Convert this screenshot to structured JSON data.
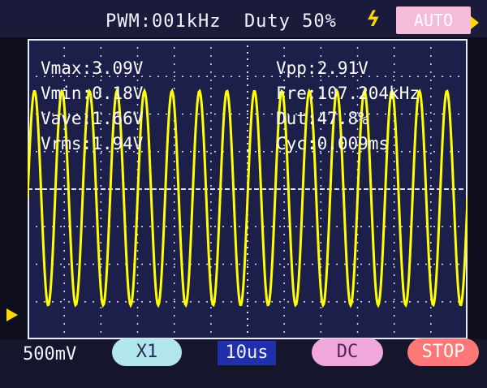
{
  "header": {
    "pwm_label": "PWM:001kHz  Duty 50%",
    "trigger_edge_icon": "trigger-edge-icon",
    "mode_label": "AUTO"
  },
  "measurements": {
    "vmax": "Vmax:3.09V",
    "vmin": "Vmin:0.18V",
    "vave": "Vave:1.66V",
    "vrms": "Vrms:1.94V",
    "vpp": "Vpp:2.91V",
    "fre": "Fre:107.204kHz",
    "dut": "Dut:47.8%",
    "cyc": "Cyc:0.009ms"
  },
  "footer": {
    "volts_div": "500mV",
    "probe": "X1",
    "time_div": "10us",
    "coupling": "DC",
    "run_state": "STOP"
  },
  "waveform": {
    "cycles_visible": 16,
    "color": "#ffff00",
    "grid_color": "#dcdcff"
  },
  "colors": {
    "screen_bg": "#1c1f4a",
    "text": "#ffffff",
    "accent": "#ffd800"
  }
}
